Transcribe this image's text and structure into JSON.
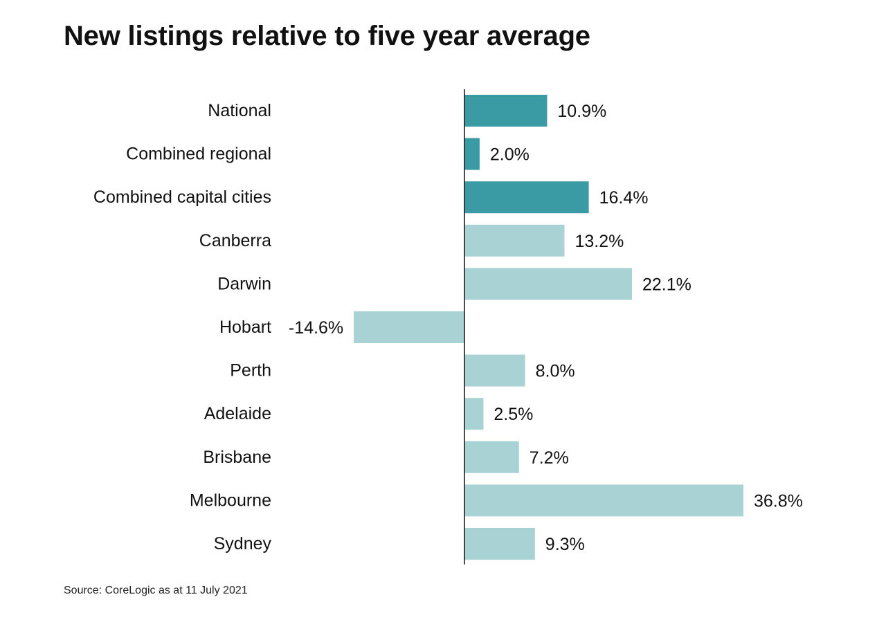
{
  "chart_data": {
    "type": "bar",
    "orientation": "horizontal",
    "title": "New listings relative to five year average",
    "categories": [
      "National",
      "Combined regional",
      "Combined capital cities",
      "Canberra",
      "Darwin",
      "Hobart",
      "Perth",
      "Adelaide",
      "Brisbane",
      "Melbourne",
      "Sydney"
    ],
    "values": [
      10.9,
      2.0,
      16.4,
      13.2,
      22.1,
      -14.6,
      8.0,
      2.5,
      7.2,
      36.8,
      9.3
    ],
    "value_labels": [
      "10.9%",
      "2.0%",
      "16.4%",
      "13.2%",
      "22.1%",
      "-14.6%",
      "8.0%",
      "2.5%",
      "7.2%",
      "36.8%",
      "9.3%"
    ],
    "highlighted": [
      true,
      true,
      true,
      false,
      false,
      false,
      false,
      false,
      false,
      false,
      false
    ],
    "colors": {
      "highlight": "#3a9ba4",
      "default": "#a9d2d5",
      "axis": "#111111"
    },
    "xlim": [
      -14.6,
      36.8
    ],
    "grid": false,
    "legend": "none",
    "source": "Source: CoreLogic as at 11 July 2021"
  }
}
